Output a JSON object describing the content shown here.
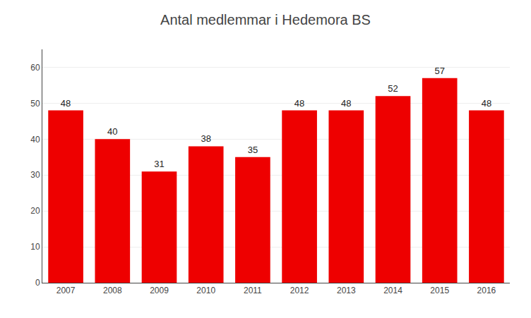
{
  "chart_data": {
    "type": "bar",
    "title": "Antal medlemmar i Hedemora BS",
    "categories": [
      "2007",
      "2008",
      "2009",
      "2010",
      "2011",
      "2012",
      "2013",
      "2014",
      "2015",
      "2016"
    ],
    "values": [
      48,
      40,
      31,
      38,
      35,
      48,
      48,
      52,
      57,
      48
    ],
    "color": "#ee0000",
    "ylim": [
      0,
      65
    ],
    "yticks": [
      0,
      10,
      20,
      30,
      40,
      50,
      60
    ],
    "grid": true,
    "data_labels": true
  }
}
